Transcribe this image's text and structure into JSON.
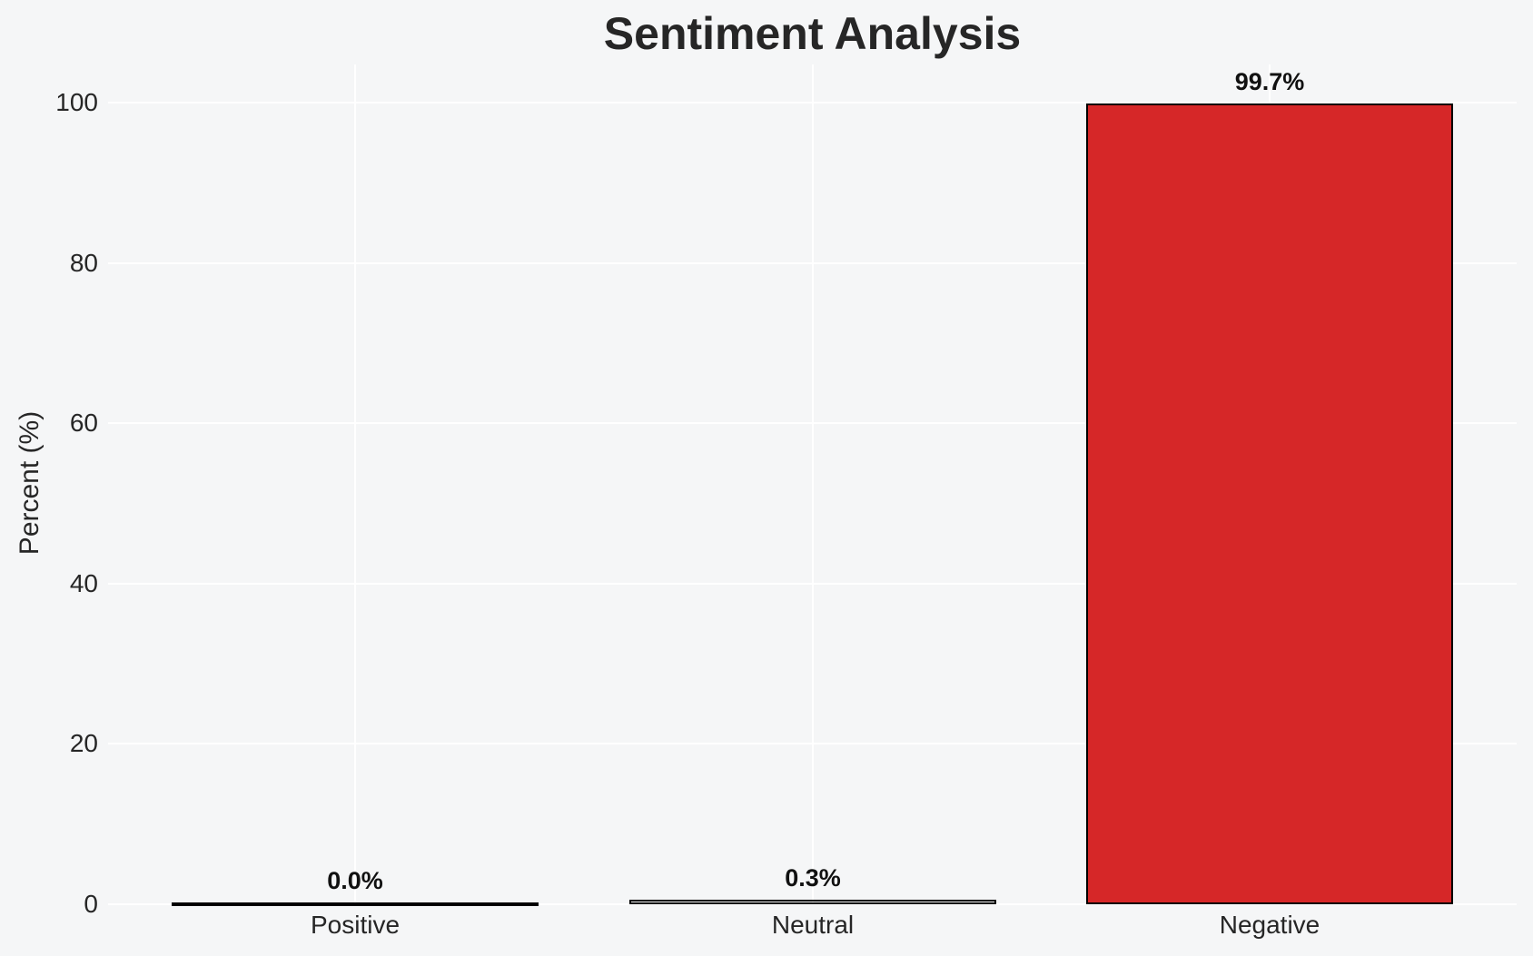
{
  "chart_data": {
    "type": "bar",
    "title": "Sentiment Analysis",
    "ylabel": "Percent (%)",
    "xlabel": "",
    "categories": [
      "Positive",
      "Neutral",
      "Negative"
    ],
    "values": [
      0.0,
      0.3,
      99.7
    ],
    "bar_labels": [
      "0.0%",
      "0.3%",
      "99.7%"
    ],
    "yticks": [
      0,
      20,
      40,
      60,
      80,
      100
    ],
    "ylim": [
      0,
      104.7
    ],
    "grid": "white gridlines, horizontal at yticks and vertical at category centers",
    "legend_position": "none",
    "colors": {
      "bar_fills": [
        null,
        null,
        "#d62728"
      ],
      "bar_edge": "#000000",
      "background": "#f5f6f7",
      "gridline": "#ffffff",
      "text": "#262626"
    }
  }
}
